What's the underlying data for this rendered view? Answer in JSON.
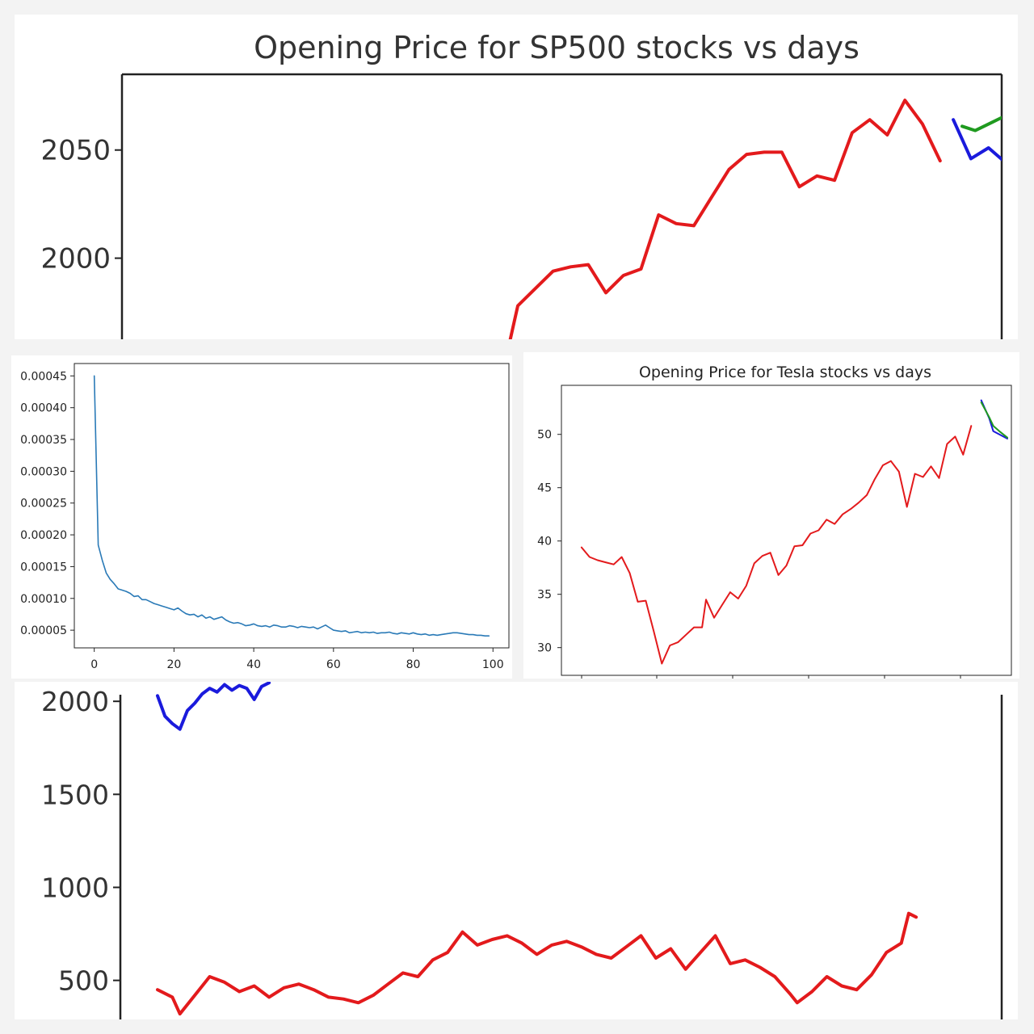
{
  "colors": {
    "history": "#e31a1c",
    "actual": "#1a1adc",
    "prediction": "#1f9a1f",
    "loss": "#2a7ab7",
    "axis": "#222222",
    "text": "#333333"
  },
  "chart_data": [
    {
      "id": "sp500_zoom",
      "type": "line",
      "title": "Opening Price for SP500 stocks vs days",
      "xlabel": "",
      "ylabel": "",
      "y_ticks": [
        2000,
        2050
      ],
      "ylim": [
        1962.5,
        2085
      ],
      "xlim": [
        0,
        100
      ],
      "grid": false,
      "series": [
        {
          "name": "",
          "color": "history",
          "points": [
            [
              44,
              1960
            ],
            [
              45,
              1978
            ],
            [
              47,
              1986
            ],
            [
              49,
              1994
            ],
            [
              51,
              1996
            ],
            [
              53,
              1997
            ],
            [
              55,
              1984
            ],
            [
              57,
              1992
            ],
            [
              59,
              1995
            ],
            [
              61,
              2020
            ],
            [
              63,
              2016
            ],
            [
              65,
              2015
            ],
            [
              67,
              2028
            ],
            [
              69,
              2041
            ],
            [
              71,
              2048
            ],
            [
              73,
              2049
            ],
            [
              75,
              2049
            ],
            [
              77,
              2033
            ],
            [
              79,
              2038
            ],
            [
              81,
              2036
            ],
            [
              83,
              2058
            ],
            [
              85,
              2064
            ],
            [
              87,
              2057
            ],
            [
              89,
              2073
            ],
            [
              91,
              2062
            ],
            [
              93,
              2045
            ]
          ]
        },
        {
          "name": "",
          "color": "actual",
          "points": [
            [
              94.5,
              2064
            ],
            [
              96.5,
              2046
            ],
            [
              98.5,
              2051
            ],
            [
              100.5,
              2044
            ],
            [
              102.5,
              2067
            ]
          ]
        },
        {
          "name": "",
          "color": "prediction",
          "points": [
            [
              95.5,
              2061
            ],
            [
              97,
              2059
            ],
            [
              99,
              2063
            ],
            [
              101,
              2067
            ],
            [
              103,
              2068
            ]
          ]
        }
      ]
    },
    {
      "id": "training_loss",
      "type": "line",
      "title": "",
      "xlabel": "",
      "ylabel": "",
      "x_ticks": [
        0,
        20,
        40,
        60,
        80,
        100
      ],
      "y_tick_labels": [
        "0.00005",
        "0.00010",
        "0.00015",
        "0.00020",
        "0.00025",
        "0.00030",
        "0.00035",
        "0.00040",
        "0.00045"
      ],
      "y_ticks": [
        5e-05,
        0.0001,
        0.00015,
        0.0002,
        0.00025,
        0.0003,
        0.00035,
        0.0004,
        0.00045
      ],
      "xlim": [
        -5,
        104
      ],
      "ylim": [
        2.22e-05,
        0.0004695
      ],
      "grid": false,
      "series": [
        {
          "name": "",
          "color": "loss",
          "x": [
            0,
            1,
            2,
            3,
            4,
            5,
            6,
            7,
            8,
            9,
            10,
            11,
            12,
            13,
            14,
            15,
            16,
            17,
            18,
            19,
            20,
            21,
            22,
            23,
            24,
            25,
            26,
            27,
            28,
            29,
            30,
            31,
            32,
            33,
            34,
            35,
            36,
            37,
            38,
            39,
            40,
            41,
            42,
            43,
            44,
            45,
            46,
            47,
            48,
            49,
            50,
            51,
            52,
            53,
            54,
            55,
            56,
            57,
            58,
            59,
            60,
            61,
            62,
            63,
            64,
            65,
            66,
            67,
            68,
            69,
            70,
            71,
            72,
            73,
            74,
            75,
            76,
            77,
            78,
            79,
            80,
            81,
            82,
            83,
            84,
            85,
            86,
            87,
            88,
            89,
            90,
            91,
            92,
            93,
            94,
            95,
            96,
            97,
            98,
            99
          ],
          "y": [
            0.00045,
            0.000184,
            0.00016,
            0.00014,
            0.00013,
            0.000123,
            0.000115,
            0.000113,
            0.000111,
            0.000108,
            0.000103,
            0.000104,
            9.8e-05,
            9.8e-05,
            9.5e-05,
            9.2e-05,
            9e-05,
            8.8e-05,
            8.6e-05,
            8.4e-05,
            8.2e-05,
            8.5e-05,
            8e-05,
            7.6e-05,
            7.4e-05,
            7.5e-05,
            7.1e-05,
            7.4e-05,
            6.9e-05,
            7.1e-05,
            6.7e-05,
            6.9e-05,
            7.1e-05,
            6.6e-05,
            6.3e-05,
            6.1e-05,
            6.2e-05,
            6e-05,
            5.7e-05,
            5.8e-05,
            6e-05,
            5.7e-05,
            5.6e-05,
            5.7e-05,
            5.5e-05,
            5.8e-05,
            5.7e-05,
            5.5e-05,
            5.5e-05,
            5.7e-05,
            5.6e-05,
            5.4e-05,
            5.6e-05,
            5.5e-05,
            5.4e-05,
            5.5e-05,
            5.2e-05,
            5.5e-05,
            5.8e-05,
            5.4e-05,
            5e-05,
            4.9e-05,
            4.8e-05,
            4.9e-05,
            4.6e-05,
            4.7e-05,
            4.8e-05,
            4.6e-05,
            4.7e-05,
            4.6e-05,
            4.7e-05,
            4.5e-05,
            4.6e-05,
            4.6e-05,
            4.7e-05,
            4.5e-05,
            4.4e-05,
            4.6e-05,
            4.5e-05,
            4.4e-05,
            4.6e-05,
            4.4e-05,
            4.3e-05,
            4.4e-05,
            4.2e-05,
            4.3e-05,
            4.2e-05,
            4.3e-05,
            4.4e-05,
            4.5e-05,
            4.6e-05,
            4.6e-05,
            4.5e-05,
            4.4e-05,
            4.3e-05,
            4.3e-05,
            4.2e-05,
            4.2e-05,
            4.1e-05,
            4.1e-05
          ]
        }
      ]
    },
    {
      "id": "tesla",
      "type": "line",
      "title": "Opening Price for Tesla stocks vs days",
      "xlabel": "",
      "ylabel": "",
      "y_ticks": [
        30,
        35,
        40,
        45,
        50
      ],
      "ylim": [
        27.4,
        54.6
      ],
      "xlim": [
        -2,
        110
      ],
      "grid": false,
      "series": [
        {
          "name": "",
          "color": "history",
          "points": [
            [
              3,
              39.4
            ],
            [
              5,
              38.5
            ],
            [
              7,
              38.2
            ],
            [
              9,
              38
            ],
            [
              11,
              37.8
            ],
            [
              13,
              38.5
            ],
            [
              15,
              37
            ],
            [
              17,
              34.3
            ],
            [
              19,
              34.4
            ],
            [
              21,
              31.5
            ],
            [
              23,
              28.5
            ],
            [
              25,
              30.2
            ],
            [
              27,
              30.5
            ],
            [
              29,
              31.2
            ],
            [
              31,
              31.9
            ],
            [
              33,
              31.9
            ],
            [
              34,
              34.5
            ],
            [
              36,
              32.8
            ],
            [
              38,
              34
            ],
            [
              40,
              35.2
            ],
            [
              42,
              34.6
            ],
            [
              44,
              35.8
            ],
            [
              46,
              37.9
            ],
            [
              48,
              38.6
            ],
            [
              50,
              38.9
            ],
            [
              52,
              36.8
            ],
            [
              54,
              37.7
            ],
            [
              56,
              39.5
            ],
            [
              58,
              39.6
            ],
            [
              60,
              40.7
            ],
            [
              62,
              41
            ],
            [
              64,
              42
            ],
            [
              66,
              41.6
            ],
            [
              68,
              42.5
            ],
            [
              70,
              43
            ],
            [
              72,
              43.6
            ],
            [
              74,
              44.3
            ],
            [
              76,
              45.8
            ],
            [
              78,
              47.1
            ],
            [
              80,
              47.5
            ],
            [
              82,
              46.5
            ],
            [
              84,
              43.2
            ],
            [
              86,
              46.3
            ],
            [
              88,
              46
            ],
            [
              90,
              47
            ],
            [
              92,
              45.9
            ],
            [
              94,
              49.1
            ],
            [
              96,
              49.8
            ],
            [
              98,
              48.1
            ],
            [
              100,
              50.8
            ]
          ]
        },
        {
          "name": "",
          "color": "actual",
          "points": [
            [
              102.5,
              53.2
            ],
            [
              104.5,
              51.5
            ],
            [
              105.5,
              50.3
            ],
            [
              107,
              50
            ],
            [
              109,
              49.6
            ]
          ]
        },
        {
          "name": "",
          "color": "prediction",
          "points": [
            [
              102.5,
              53
            ],
            [
              104.5,
              51.6
            ],
            [
              105.5,
              50.8
            ],
            [
              107,
              50.3
            ],
            [
              109,
              49.7
            ]
          ]
        }
      ]
    },
    {
      "id": "sp500_full",
      "type": "line",
      "title": "",
      "xlabel": "",
      "ylabel": "",
      "y_ticks": [
        500,
        1000,
        1500,
        2000
      ],
      "ylim": [
        290,
        2105
      ],
      "xlim": [
        -5,
        113.5
      ],
      "grid": false,
      "series": [
        {
          "name": "",
          "color": "history",
          "points": [
            [
              0,
              450
            ],
            [
              2,
              410
            ],
            [
              3,
              320
            ],
            [
              5,
              420
            ],
            [
              7,
              520
            ],
            [
              9,
              490
            ],
            [
              11,
              440
            ],
            [
              13,
              470
            ],
            [
              15,
              410
            ],
            [
              17,
              460
            ],
            [
              19,
              480
            ],
            [
              21,
              450
            ],
            [
              23,
              410
            ],
            [
              25,
              400
            ],
            [
              27,
              380
            ],
            [
              29,
              420
            ],
            [
              31,
              480
            ],
            [
              33,
              540
            ],
            [
              35,
              520
            ],
            [
              37,
              610
            ],
            [
              39,
              650
            ],
            [
              41,
              760
            ],
            [
              43,
              690
            ],
            [
              45,
              720
            ],
            [
              47,
              740
            ],
            [
              49,
              700
            ],
            [
              51,
              640
            ],
            [
              53,
              690
            ],
            [
              55,
              710
            ],
            [
              57,
              680
            ],
            [
              59,
              640
            ],
            [
              61,
              620
            ],
            [
              63,
              680
            ],
            [
              65,
              740
            ],
            [
              67,
              620
            ],
            [
              69,
              670
            ],
            [
              71,
              560
            ],
            [
              73,
              650
            ],
            [
              75,
              740
            ],
            [
              77,
              590
            ],
            [
              79,
              610
            ],
            [
              81,
              570
            ],
            [
              83,
              520
            ],
            [
              85,
              430
            ],
            [
              86,
              380
            ],
            [
              88,
              440
            ],
            [
              90,
              520
            ],
            [
              92,
              470
            ],
            [
              94,
              450
            ],
            [
              96,
              530
            ],
            [
              98,
              650
            ],
            [
              100,
              700
            ],
            [
              101,
              860
            ],
            [
              102,
              840
            ]
          ]
        },
        {
          "name": "",
          "color": "actual",
          "points": [
            [
              0,
              2030
            ],
            [
              1,
              1920
            ],
            [
              2,
              1880
            ],
            [
              3,
              1850
            ],
            [
              4,
              1950
            ],
            [
              5,
              1990
            ],
            [
              6,
              2040
            ],
            [
              7,
              2070
            ],
            [
              8,
              2050
            ],
            [
              9,
              2090
            ],
            [
              10,
              2060
            ],
            [
              11,
              2085
            ],
            [
              12,
              2070
            ],
            [
              13,
              2010
            ],
            [
              14,
              2080
            ],
            [
              15,
              2100
            ]
          ]
        }
      ]
    }
  ]
}
